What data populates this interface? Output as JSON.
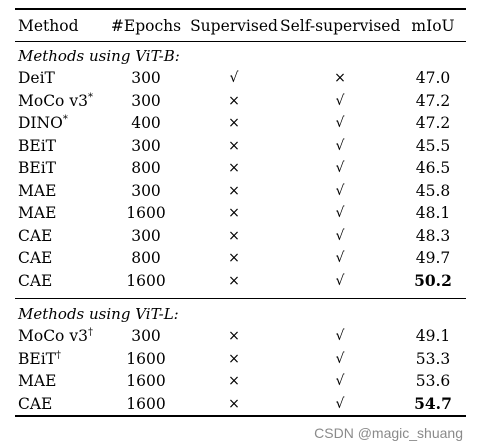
{
  "headers": {
    "method": "Method",
    "epochs": "#Epochs",
    "supervised": "Supervised",
    "self_supervised": "Self-supervised",
    "miou": "mIoU"
  },
  "sections": [
    {
      "title": "Methods using ViT-B:",
      "rows": [
        {
          "method": "DeiT",
          "mark": "",
          "epochs": "300",
          "sup": "√",
          "self": "×",
          "miou": "47.0",
          "bold": false
        },
        {
          "method": "MoCo v3",
          "mark": "*",
          "epochs": "300",
          "sup": "×",
          "self": "√",
          "miou": "47.2",
          "bold": false
        },
        {
          "method": "DINO",
          "mark": "*",
          "epochs": "400",
          "sup": "×",
          "self": "√",
          "miou": "47.2",
          "bold": false
        },
        {
          "method": "BEiT",
          "mark": "",
          "epochs": "300",
          "sup": "×",
          "self": "√",
          "miou": "45.5",
          "bold": false
        },
        {
          "method": "BEiT",
          "mark": "",
          "epochs": "800",
          "sup": "×",
          "self": "√",
          "miou": "46.5",
          "bold": false
        },
        {
          "method": "MAE",
          "mark": "",
          "epochs": "300",
          "sup": "×",
          "self": "√",
          "miou": "45.8",
          "bold": false
        },
        {
          "method": "MAE",
          "mark": "",
          "epochs": "1600",
          "sup": "×",
          "self": "√",
          "miou": "48.1",
          "bold": false
        },
        {
          "method": "CAE",
          "mark": "",
          "epochs": "300",
          "sup": "×",
          "self": "√",
          "miou": "48.3",
          "bold": false
        },
        {
          "method": "CAE",
          "mark": "",
          "epochs": "800",
          "sup": "×",
          "self": "√",
          "miou": "49.7",
          "bold": false
        },
        {
          "method": "CAE",
          "mark": "",
          "epochs": "1600",
          "sup": "×",
          "self": "√",
          "miou": "50.2",
          "bold": true
        }
      ]
    },
    {
      "title": "Methods using ViT-L:",
      "rows": [
        {
          "method": "MoCo v3",
          "mark": "†",
          "epochs": "300",
          "sup": "×",
          "self": "√",
          "miou": "49.1",
          "bold": false
        },
        {
          "method": "BEiT",
          "mark": "†",
          "epochs": "1600",
          "sup": "×",
          "self": "√",
          "miou": "53.3",
          "bold": false
        },
        {
          "method": "MAE",
          "mark": "",
          "epochs": "1600",
          "sup": "×",
          "self": "√",
          "miou": "53.6",
          "bold": false
        },
        {
          "method": "CAE",
          "mark": "",
          "epochs": "1600",
          "sup": "×",
          "self": "√",
          "miou": "54.7",
          "bold": true
        }
      ]
    }
  ],
  "watermark": "CSDN @magic_shuang"
}
